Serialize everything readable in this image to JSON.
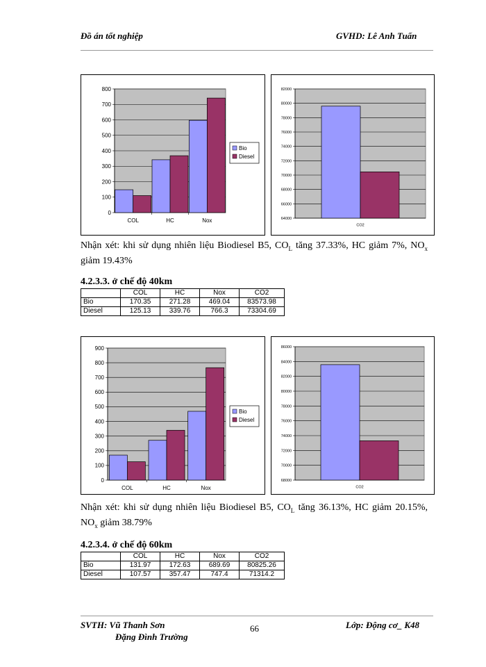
{
  "header": {
    "left": "Đồ án tốt nghiệp",
    "right": "GVHD: Lê Anh Tuấn"
  },
  "footer": {
    "svth_label": "SVTH: Vũ Thanh Sơn",
    "svth_name2": "Đặng Đình Trường",
    "page_number": "66",
    "class_label": "Lớp: Động cơ_ K48"
  },
  "colors": {
    "bio": "#9999FF",
    "diesel": "#993366",
    "plot_bg": "#C0C0C0"
  },
  "remark1": {
    "text_a": "Nhận xét: khi sử dụng nhiên liệu Biodiesel B5, CO",
    "sub_a": "L",
    "text_b": " tăng 37.33%, HC giảm 7%, NO",
    "sub_b": "x",
    "text_c": " giảm 19.43%"
  },
  "remark2": {
    "text_a": "Nhận xét: khi sử dụng nhiên liệu Biodiesel B5, CO",
    "sub_a": "L",
    "text_b": " tăng 36.13%, HC giảm 20.15%, NO",
    "sub_b": "x",
    "text_c": " giảm 38.79%"
  },
  "section_40": "4.2.3.3. ở chế độ 40km",
  "section_60": "4.2.3.4. ở chế độ 60km",
  "table_40": {
    "headers": [
      "",
      "COL",
      "HC",
      "Nox",
      "CO2"
    ],
    "rows": [
      {
        "label": "Bio",
        "values": [
          "170.35",
          "271.28",
          "469.04",
          "83573.98"
        ]
      },
      {
        "label": "Diesel",
        "values": [
          "125.13",
          "339.76",
          "766.3",
          "73304.69"
        ]
      }
    ]
  },
  "table_60": {
    "headers": [
      "",
      "COL",
      "HC",
      "Nox",
      "CO2"
    ],
    "rows": [
      {
        "label": "Bio",
        "values": [
          "131.97",
          "172.63",
          "689.69",
          "80825.26"
        ]
      },
      {
        "label": "Diesel",
        "values": [
          "107.57",
          "357.47",
          "747.4",
          "71314.2"
        ]
      }
    ]
  },
  "chart_data": [
    {
      "type": "bar",
      "categories": [
        "COL",
        "HC",
        "Nox"
      ],
      "series": [
        {
          "name": "Bio",
          "values": [
            148,
            342,
            597
          ]
        },
        {
          "name": "Diesel",
          "values": [
            110,
            368,
            741
          ]
        }
      ],
      "ylim": [
        0,
        800
      ],
      "yticks": [
        "0",
        "100",
        "200",
        "300",
        "400",
        "500",
        "600",
        "700",
        "800"
      ],
      "legend": [
        "Bio",
        "Diesel"
      ],
      "grid": true
    },
    {
      "type": "bar",
      "categories": [
        "CO2"
      ],
      "series": [
        {
          "name": "Bio",
          "values": [
            79600
          ]
        },
        {
          "name": "Diesel",
          "values": [
            70450
          ]
        }
      ],
      "ylim": [
        64000,
        82000
      ],
      "yticks": [
        "64000",
        "66000",
        "68000",
        "70000",
        "72000",
        "74000",
        "76000",
        "78000",
        "80000",
        "82000"
      ],
      "grid": true
    },
    {
      "type": "bar",
      "categories": [
        "COL",
        "HC",
        "Nox"
      ],
      "series": [
        {
          "name": "Bio",
          "values": [
            170.35,
            271.28,
            469.04
          ]
        },
        {
          "name": "Diesel",
          "values": [
            125.13,
            339.76,
            766.3
          ]
        }
      ],
      "ylim": [
        0,
        900
      ],
      "yticks": [
        "0",
        "100",
        "200",
        "300",
        "400",
        "500",
        "600",
        "700",
        "800",
        "900"
      ],
      "legend": [
        "Bio",
        "Diesel"
      ],
      "grid": true
    },
    {
      "type": "bar",
      "categories": [
        "CO2"
      ],
      "series": [
        {
          "name": "Bio",
          "values": [
            83573.98
          ]
        },
        {
          "name": "Diesel",
          "values": [
            73304.69
          ]
        }
      ],
      "ylim": [
        68000,
        86000
      ],
      "yticks": [
        "68000",
        "70000",
        "72000",
        "74000",
        "76000",
        "78000",
        "80000",
        "82000",
        "84000",
        "86000"
      ],
      "grid": true
    }
  ]
}
